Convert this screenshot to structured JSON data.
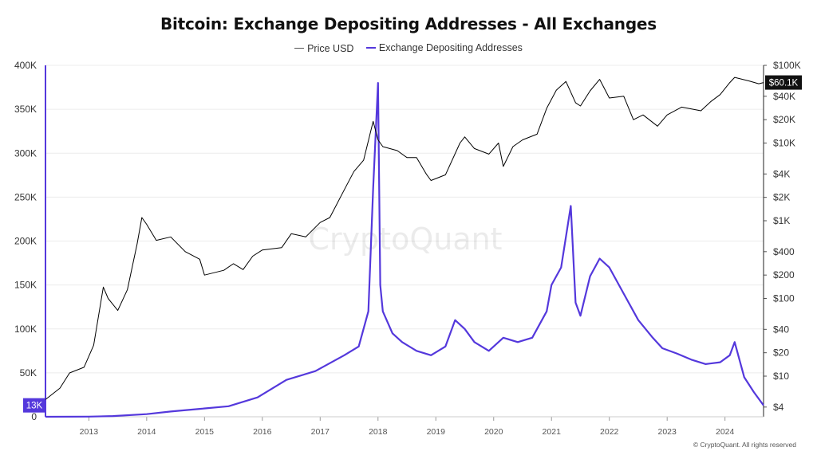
{
  "chart_data": {
    "type": "line",
    "title": "Bitcoin: Exchange Depositing Addresses - All Exchanges",
    "series": [
      {
        "name": "Price USD",
        "axis": "right",
        "scale": "log",
        "color": "#000000",
        "points": [
          [
            "2012-04",
            5
          ],
          [
            "2012-07",
            7
          ],
          [
            "2012-09",
            11
          ],
          [
            "2012-12",
            13
          ],
          [
            "2013-02",
            25
          ],
          [
            "2013-04",
            140
          ],
          [
            "2013-05",
            100
          ],
          [
            "2013-07",
            70
          ],
          [
            "2013-09",
            130
          ],
          [
            "2013-11",
            500
          ],
          [
            "2013-12",
            1100
          ],
          [
            "2014-01",
            900
          ],
          [
            "2014-03",
            560
          ],
          [
            "2014-06",
            620
          ],
          [
            "2014-09",
            400
          ],
          [
            "2014-12",
            320
          ],
          [
            "2015-01",
            200
          ],
          [
            "2015-05",
            230
          ],
          [
            "2015-07",
            280
          ],
          [
            "2015-09",
            235
          ],
          [
            "2015-11",
            350
          ],
          [
            "2016-01",
            420
          ],
          [
            "2016-05",
            450
          ],
          [
            "2016-07",
            680
          ],
          [
            "2016-10",
            620
          ],
          [
            "2017-01",
            950
          ],
          [
            "2017-03",
            1100
          ],
          [
            "2017-06",
            2500
          ],
          [
            "2017-08",
            4300
          ],
          [
            "2017-10",
            6000
          ],
          [
            "2017-12",
            19000
          ],
          [
            "2018-01",
            11000
          ],
          [
            "2018-02",
            9000
          ],
          [
            "2018-05",
            8000
          ],
          [
            "2018-07",
            6500
          ],
          [
            "2018-09",
            6500
          ],
          [
            "2018-11",
            4000
          ],
          [
            "2018-12",
            3300
          ],
          [
            "2019-03",
            3900
          ],
          [
            "2019-06",
            10000
          ],
          [
            "2019-07",
            12000
          ],
          [
            "2019-09",
            8500
          ],
          [
            "2019-12",
            7200
          ],
          [
            "2020-02",
            10000
          ],
          [
            "2020-03",
            5000
          ],
          [
            "2020-05",
            9000
          ],
          [
            "2020-07",
            11000
          ],
          [
            "2020-10",
            13000
          ],
          [
            "2020-12",
            28000
          ],
          [
            "2021-02",
            48000
          ],
          [
            "2021-04",
            62000
          ],
          [
            "2021-06",
            33000
          ],
          [
            "2021-07",
            30000
          ],
          [
            "2021-09",
            47000
          ],
          [
            "2021-11",
            66000
          ],
          [
            "2022-01",
            38000
          ],
          [
            "2022-04",
            40000
          ],
          [
            "2022-06",
            20000
          ],
          [
            "2022-08",
            23000
          ],
          [
            "2022-11",
            16500
          ],
          [
            "2023-01",
            23000
          ],
          [
            "2023-04",
            29000
          ],
          [
            "2023-08",
            26000
          ],
          [
            "2023-10",
            34000
          ],
          [
            "2023-12",
            42000
          ],
          [
            "2024-02",
            60000
          ],
          [
            "2024-03",
            70000
          ],
          [
            "2024-06",
            63000
          ],
          [
            "2024-08",
            58000
          ],
          [
            "2024-09",
            60100
          ]
        ]
      },
      {
        "name": "Exchange Depositing Addresses",
        "axis": "left",
        "scale": "linear",
        "color": "#5438dc",
        "points": [
          [
            "2012-04",
            0
          ],
          [
            "2013-01",
            200
          ],
          [
            "2013-06",
            800
          ],
          [
            "2014-01",
            3000
          ],
          [
            "2014-06",
            6000
          ],
          [
            "2014-12",
            9000
          ],
          [
            "2015-06",
            12000
          ],
          [
            "2015-12",
            22000
          ],
          [
            "2016-06",
            42000
          ],
          [
            "2016-12",
            52000
          ],
          [
            "2017-06",
            70000
          ],
          [
            "2017-09",
            80000
          ],
          [
            "2017-11",
            120000
          ],
          [
            "2017-12",
            260000
          ],
          [
            "2018-01",
            380000
          ],
          [
            "2018-01-15",
            150000
          ],
          [
            "2018-02",
            120000
          ],
          [
            "2018-04",
            95000
          ],
          [
            "2018-06",
            85000
          ],
          [
            "2018-09",
            75000
          ],
          [
            "2018-12",
            70000
          ],
          [
            "2019-03",
            80000
          ],
          [
            "2019-05",
            110000
          ],
          [
            "2019-07",
            100000
          ],
          [
            "2019-09",
            85000
          ],
          [
            "2019-12",
            75000
          ],
          [
            "2020-03",
            90000
          ],
          [
            "2020-06",
            85000
          ],
          [
            "2020-09",
            90000
          ],
          [
            "2020-12",
            120000
          ],
          [
            "2021-01",
            150000
          ],
          [
            "2021-03",
            170000
          ],
          [
            "2021-05",
            240000
          ],
          [
            "2021-06",
            130000
          ],
          [
            "2021-07",
            115000
          ],
          [
            "2021-09",
            160000
          ],
          [
            "2021-11",
            180000
          ],
          [
            "2022-01",
            170000
          ],
          [
            "2022-04",
            140000
          ],
          [
            "2022-07",
            110000
          ],
          [
            "2022-10",
            90000
          ],
          [
            "2022-12",
            78000
          ],
          [
            "2023-03",
            72000
          ],
          [
            "2023-06",
            65000
          ],
          [
            "2023-09",
            60000
          ],
          [
            "2023-12",
            62000
          ],
          [
            "2024-02",
            70000
          ],
          [
            "2024-03",
            85000
          ],
          [
            "2024-05",
            45000
          ],
          [
            "2024-07",
            28000
          ],
          [
            "2024-09",
            13000
          ]
        ]
      }
    ],
    "x_ticks": [
      "2013",
      "2014",
      "2015",
      "2016",
      "2017",
      "2018",
      "2019",
      "2020",
      "2021",
      "2022",
      "2023",
      "2024"
    ],
    "y_left_ticks": [
      "0",
      "50K",
      "100K",
      "150K",
      "200K",
      "250K",
      "300K",
      "350K",
      "400K"
    ],
    "y_right_ticks": [
      "$4",
      "$10",
      "$20",
      "$40",
      "$100",
      "$200",
      "$400",
      "$1K",
      "$2K",
      "$4K",
      "$10K",
      "$20K",
      "$40K",
      "$100K"
    ],
    "ylim_left": [
      0,
      400000
    ],
    "ylim_right": [
      3,
      100000
    ],
    "xlim": [
      "2012-04",
      "2024-09"
    ],
    "last_price_label": "$60.1K",
    "last_addresses_label": "13K",
    "legend_position": "top-center",
    "grid": true,
    "watermark": "CryptoQuant"
  },
  "footer": "© CryptoQuant. All rights reserved"
}
